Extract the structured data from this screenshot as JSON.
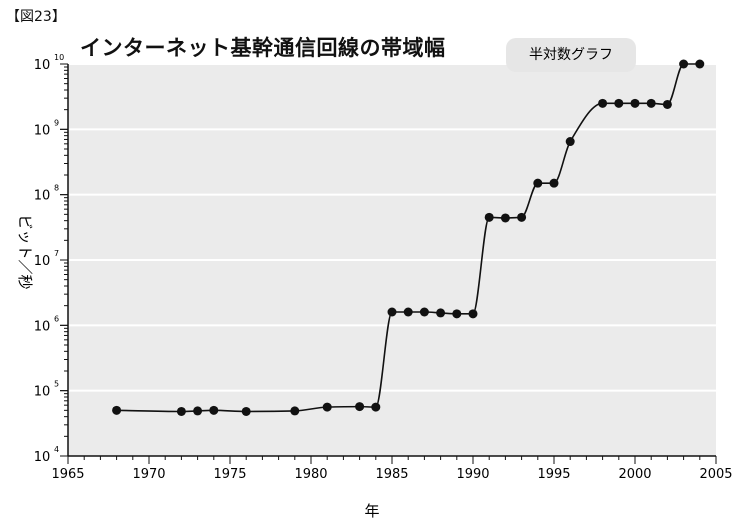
{
  "figure_label": "【図23】",
  "chart_data": {
    "type": "line",
    "title": "インターネット基幹通信回線の帯域幅",
    "badge": "半対数グラフ",
    "xlabel": "年",
    "ylabel": "ビット／秒",
    "xlim": [
      1965,
      2005
    ],
    "ylim_log10": [
      4,
      10
    ],
    "y_scale": "log",
    "grid": true,
    "x_ticks": [
      1965,
      1970,
      1975,
      1980,
      1985,
      1990,
      1995,
      2000,
      2005
    ],
    "y_ticks_exponents": [
      4,
      5,
      6,
      7,
      8,
      9,
      10
    ],
    "y_tick_base": "10",
    "colors": {
      "plot_bg": "#ebebeb",
      "grid": "#ffffff",
      "line": "#111111",
      "badge_bg": "#e6e6e6"
    },
    "series": [
      {
        "x": [
          1968,
          1972,
          1973,
          1974,
          1976,
          1979,
          1981,
          1983,
          1984,
          1985,
          1986,
          1987,
          1988,
          1989,
          1990,
          1991,
          1992,
          1993,
          1994,
          1995,
          1996,
          1998,
          1999,
          2000,
          2001,
          2002,
          2003,
          2004
        ],
        "y": [
          50000,
          48000,
          49000,
          50000,
          48000,
          49000,
          56000,
          57000,
          56000,
          1600000,
          1600000,
          1600000,
          1550000,
          1500000,
          1500000,
          45000000,
          44000000,
          45000000,
          150000000,
          150000000,
          650000000,
          2500000000,
          2500000000,
          2500000000,
          2500000000,
          2400000000,
          10000000000,
          10000000000
        ]
      }
    ]
  }
}
